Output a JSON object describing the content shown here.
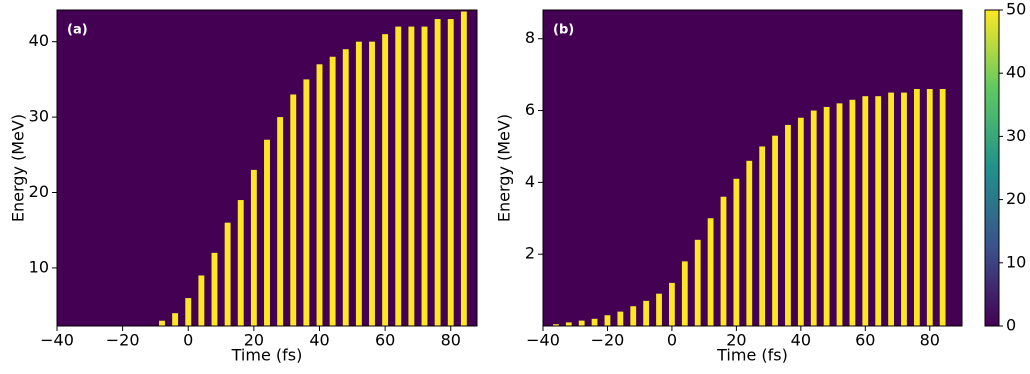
{
  "chart_data": [
    {
      "type": "stripes",
      "panel_label": "(a)",
      "x_label": "Time (fs)",
      "y_label": "Energy (MeV)",
      "xlim": [
        -40,
        88
      ],
      "ylim": [
        2.3,
        44.2
      ],
      "xticks": [
        {
          "value": -40,
          "label": "−40"
        },
        {
          "value": -20,
          "label": "−20"
        },
        0,
        20,
        40,
        60,
        80
      ],
      "yticks": [
        10,
        20,
        30,
        40
      ],
      "background": "#440154",
      "color": "#fde725",
      "x": [
        -8,
        -4,
        0,
        4,
        8,
        12,
        16,
        20,
        24,
        28,
        32,
        36,
        40,
        44,
        48,
        52,
        56,
        60,
        64,
        68,
        72,
        76,
        80,
        84
      ],
      "values": [
        3,
        4,
        6,
        9,
        12,
        16,
        19,
        23,
        27,
        30,
        33,
        35,
        37,
        38,
        39,
        40,
        40,
        41,
        42,
        42,
        42,
        43,
        43,
        44
      ]
    },
    {
      "type": "stripes",
      "panel_label": "(b)",
      "x_label": "Time (fs)",
      "y_label": "Energy (MeV)",
      "xlim": [
        -40,
        90
      ],
      "ylim": [
        0,
        8.8
      ],
      "xticks": [
        {
          "value": -40,
          "label": "−40"
        },
        {
          "value": -20,
          "label": "−20"
        },
        0,
        20,
        40,
        60,
        80
      ],
      "yticks": [
        2,
        4,
        6,
        8
      ],
      "background": "#440154",
      "color": "#fde725",
      "x": [
        -36,
        -32,
        -28,
        -24,
        -20,
        -16,
        -12,
        -8,
        -4,
        0,
        4,
        8,
        12,
        16,
        20,
        24,
        28,
        32,
        36,
        40,
        44,
        48,
        52,
        56,
        60,
        64,
        68,
        72,
        76,
        80,
        84
      ],
      "values": [
        0.05,
        0.1,
        0.15,
        0.2,
        0.3,
        0.4,
        0.55,
        0.7,
        0.9,
        1.2,
        1.8,
        2.4,
        3,
        3.6,
        4.1,
        4.6,
        5,
        5.3,
        5.6,
        5.8,
        6,
        6.1,
        6.2,
        6.3,
        6.4,
        6.4,
        6.5,
        6.5,
        6.6,
        6.6,
        6.6
      ],
      "colorbar": {
        "lim": [
          0,
          50
        ],
        "ticks": [
          0,
          10,
          20,
          30,
          40,
          50
        ],
        "colors": [
          "#440154",
          "#3b528b",
          "#21918c",
          "#5ec962",
          "#fde725"
        ]
      }
    }
  ]
}
